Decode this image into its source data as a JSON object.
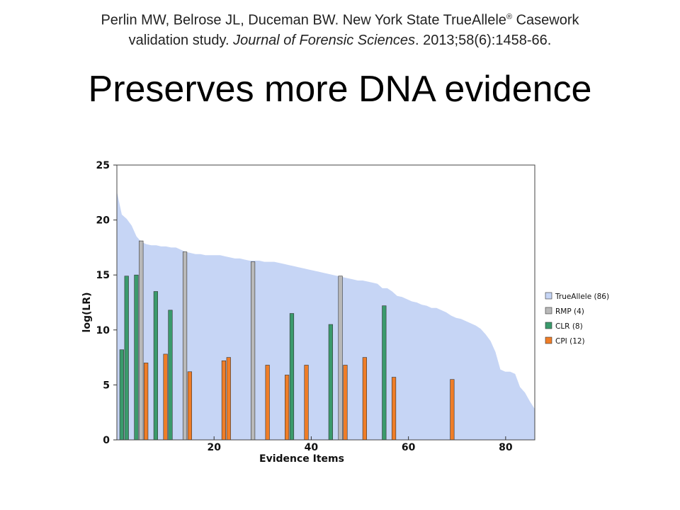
{
  "citation": {
    "line1_pre": "Perlin MW, Belrose JL, Duceman BW. New York State TrueAllele",
    "line1_sup": "®",
    "line1_post": " Casework",
    "line2_pre": "validation study. ",
    "line2_journal": "Journal of Forensic Sciences",
    "line2_post": ". 2013;58(6):1458-66."
  },
  "title": "Preserves more DNA evidence",
  "chart_data": {
    "type": "bar",
    "xlabel": "Evidence Items",
    "ylabel": "log(LR)",
    "xlim": [
      0,
      86
    ],
    "ylim": [
      0,
      25
    ],
    "xticks": [
      20,
      40,
      60,
      80
    ],
    "yticks": [
      0,
      5,
      10,
      15,
      20,
      25
    ],
    "grid": false,
    "legend_position": "right",
    "area_series": {
      "name": "TrueAllele (86)",
      "color": "#c6d5f5",
      "values": [
        22.6,
        20.5,
        20.1,
        19.5,
        18.5,
        18.0,
        17.8,
        17.7,
        17.7,
        17.6,
        17.6,
        17.5,
        17.5,
        17.3,
        17.1,
        17.0,
        16.9,
        16.9,
        16.8,
        16.8,
        16.8,
        16.8,
        16.7,
        16.6,
        16.5,
        16.5,
        16.4,
        16.3,
        16.3,
        16.3,
        16.2,
        16.2,
        16.2,
        16.1,
        16.0,
        15.9,
        15.8,
        15.7,
        15.6,
        15.5,
        15.4,
        15.3,
        15.2,
        15.1,
        15.0,
        14.9,
        14.8,
        14.7,
        14.6,
        14.5,
        14.5,
        14.4,
        14.3,
        14.2,
        13.8,
        13.8,
        13.5,
        13.1,
        13.0,
        12.8,
        12.6,
        12.5,
        12.3,
        12.2,
        12.0,
        12.0,
        11.8,
        11.6,
        11.3,
        11.1,
        11.0,
        10.8,
        10.6,
        10.4,
        10.1,
        9.6,
        9.0,
        8.0,
        6.4,
        6.2,
        6.2,
        6.0,
        4.8,
        4.3,
        3.5,
        2.8
      ]
    },
    "series": [
      {
        "name": "RMP (4)",
        "color": "#b9b9b9",
        "points": [
          {
            "x": 5,
            "y": 18.1
          },
          {
            "x": 14,
            "y": 17.1
          },
          {
            "x": 28,
            "y": 16.2
          },
          {
            "x": 46,
            "y": 14.9
          }
        ]
      },
      {
        "name": "CLR  (8)",
        "color": "#3a9a6c",
        "points": [
          {
            "x": 1,
            "y": 8.2
          },
          {
            "x": 2,
            "y": 14.9
          },
          {
            "x": 4,
            "y": 15.0
          },
          {
            "x": 8,
            "y": 13.5
          },
          {
            "x": 11,
            "y": 11.8
          },
          {
            "x": 36,
            "y": 11.5
          },
          {
            "x": 44,
            "y": 10.5
          },
          {
            "x": 55,
            "y": 12.2
          }
        ]
      },
      {
        "name": "CPI (12)",
        "color": "#ef7d27",
        "points": [
          {
            "x": 6,
            "y": 7.0
          },
          {
            "x": 10,
            "y": 7.8
          },
          {
            "x": 15,
            "y": 6.2
          },
          {
            "x": 22,
            "y": 7.2
          },
          {
            "x": 23,
            "y": 7.5
          },
          {
            "x": 31,
            "y": 6.8
          },
          {
            "x": 35,
            "y": 5.9
          },
          {
            "x": 39,
            "y": 6.8
          },
          {
            "x": 47,
            "y": 6.8
          },
          {
            "x": 51,
            "y": 7.5
          },
          {
            "x": 57,
            "y": 5.7
          },
          {
            "x": 69,
            "y": 5.5
          }
        ]
      }
    ]
  }
}
